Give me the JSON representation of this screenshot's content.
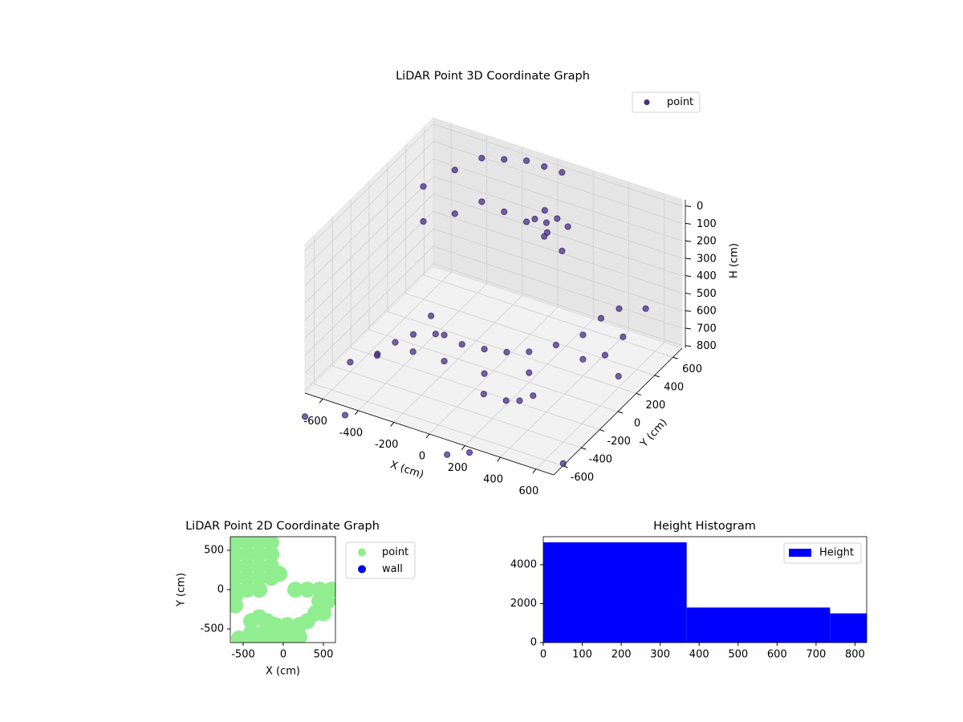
{
  "chart_data": [
    {
      "type": "scatter3d",
      "title": "LiDAR Point 3D Coordinate Graph",
      "xlabel": "X (cm)",
      "ylabel": "Y (cm)",
      "zlabel": "H (cm)",
      "xlim": [
        -700,
        700
      ],
      "ylim": [
        -700,
        700
      ],
      "zlim": [
        815,
        -35
      ],
      "xticks": [
        -600,
        -400,
        -200,
        0,
        200,
        400,
        600
      ],
      "yticks": [
        -600,
        -400,
        -200,
        0,
        200,
        400,
        600
      ],
      "zticks": [
        0,
        100,
        200,
        300,
        400,
        500,
        600,
        700,
        800
      ],
      "grid": true,
      "legend": "upper right",
      "series": [
        {
          "name": "point",
          "color": "#46317e",
          "x": [
            -550,
            -550,
            -450,
            -450,
            -350,
            -350,
            -250,
            -250,
            -150,
            -150,
            -50,
            -50,
            50,
            50,
            0,
            50,
            100,
            150,
            80,
            20,
            -300,
            -200,
            -100,
            0,
            100,
            200,
            300,
            400,
            450,
            500,
            -200,
            0,
            200,
            400,
            -600,
            -500,
            -450,
            -400,
            -350,
            -300,
            -550,
            100,
            200,
            250,
            300,
            600,
            650,
            600,
            550,
            -500,
            -700,
            100,
            200,
            650
          ],
          "y": [
            300,
            300,
            450,
            450,
            550,
            550,
            600,
            600,
            650,
            650,
            650,
            650,
            650,
            650,
            450,
            480,
            500,
            520,
            430,
            520,
            -100,
            -150,
            -150,
            -100,
            -50,
            0,
            100,
            200,
            300,
            400,
            -150,
            -100,
            0,
            200,
            -400,
            -300,
            -200,
            -100,
            -200,
            -50,
            -200,
            -300,
            -250,
            -200,
            -150,
            200,
            400,
            250,
            150,
            -650,
            -700,
            -700,
            -650,
            -500
          ],
          "z": [
            100,
            300,
            50,
            300,
            0,
            250,
            0,
            300,
            0,
            350,
            0,
            400,
            0,
            450,
            180,
            200,
            170,
            210,
            220,
            160,
            550,
            600,
            620,
            640,
            650,
            640,
            620,
            580,
            520,
            500,
            750,
            780,
            760,
            720,
            760,
            740,
            700,
            690,
            720,
            680,
            800,
            760,
            790,
            800,
            780,
            750,
            450,
            550,
            620,
            900,
            950,
            900,
            880,
            870
          ]
        }
      ]
    },
    {
      "type": "scatter",
      "title": "LiDAR Point 2D Coordinate Graph",
      "xlabel": "X (cm)",
      "ylabel": "Y (cm)",
      "xlim": [
        -660,
        650
      ],
      "ylim": [
        -673,
        673
      ],
      "xticks": [
        -500,
        0,
        500
      ],
      "yticks": [
        -500,
        0,
        500
      ],
      "legend": "outside right",
      "series": [
        {
          "name": "point",
          "color": "#90ee90",
          "x": [
            -600,
            -450,
            -300,
            -150,
            -600,
            -450,
            -300,
            -150,
            -600,
            -450,
            -300,
            -150,
            -600,
            -450,
            -300,
            -150,
            -50,
            -600,
            -450,
            -300,
            -600,
            150,
            300,
            450,
            600,
            550,
            450,
            500,
            400,
            300,
            -100,
            50,
            200,
            -400,
            -250,
            -100,
            50,
            200,
            -550,
            -400,
            -250,
            -100,
            50,
            -400,
            -300,
            -200,
            -600
          ],
          "y": [
            600,
            600,
            600,
            600,
            450,
            450,
            450,
            450,
            300,
            300,
            300,
            300,
            150,
            150,
            150,
            150,
            200,
            0,
            0,
            0,
            -80,
            0,
            0,
            0,
            0,
            -150,
            -150,
            -300,
            -300,
            -400,
            -450,
            -450,
            -450,
            -550,
            -550,
            -550,
            -550,
            -600,
            -620,
            -620,
            -620,
            -620,
            -620,
            -400,
            -350,
            -400,
            -200
          ]
        },
        {
          "name": "wall",
          "color": "#0000ff",
          "x": [],
          "y": []
        }
      ]
    },
    {
      "type": "histogram",
      "title": "Height Histogram",
      "bins": [
        0,
        368,
        736,
        1104
      ],
      "xlim": [
        0,
        830
      ],
      "ylim": [
        0,
        5440
      ],
      "xticks": [
        0,
        100,
        200,
        300,
        400,
        500,
        600,
        700,
        800
      ],
      "yticks": [
        0,
        2000,
        4000
      ],
      "legend": "upper right",
      "series": [
        {
          "name": "Height",
          "color": "#0000ff",
          "values": [
            5150,
            1800,
            1500
          ]
        }
      ]
    }
  ]
}
